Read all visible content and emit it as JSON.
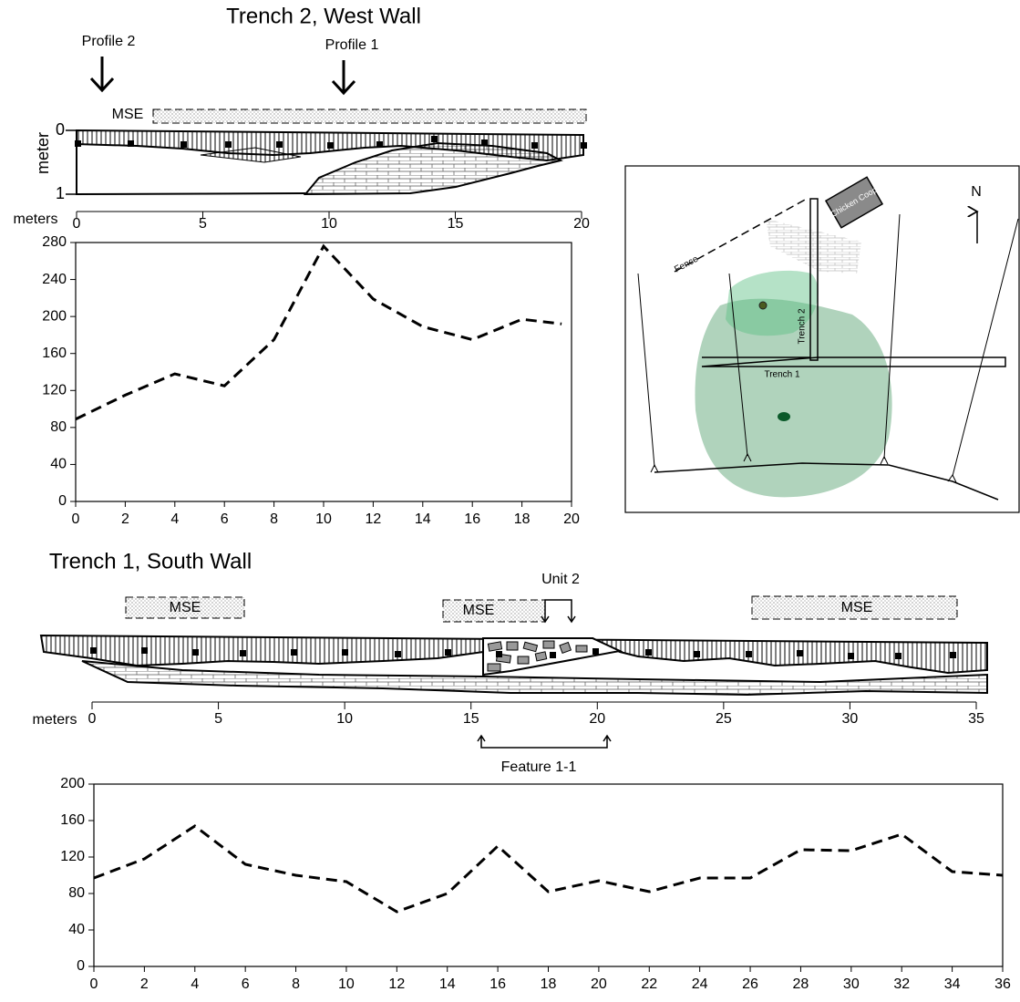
{
  "profile_top": {
    "title": "Trench 2, West Wall",
    "markers": [
      "Profile 2",
      "Profile 1"
    ],
    "mse": "MSE",
    "depth_ticks": [
      0,
      1
    ],
    "depth_label": "meter",
    "scale_label": "meters",
    "scale_ticks": [
      0,
      5,
      10,
      15,
      20
    ]
  },
  "chart_data": [
    {
      "type": "line",
      "x": [
        0,
        2,
        4,
        6,
        8,
        10,
        12,
        14,
        16,
        18,
        19.6
      ],
      "values": [
        89,
        115,
        138,
        125,
        175,
        276,
        219,
        189,
        175,
        197,
        192
      ],
      "color": "#000000",
      "xlim": [
        0,
        20
      ],
      "ylim": [
        0,
        280
      ],
      "xticks": [
        0,
        2,
        4,
        6,
        8,
        10,
        12,
        14,
        16,
        18,
        20
      ],
      "yticks": [
        0,
        40,
        80,
        120,
        160,
        200,
        240,
        280
      ],
      "grid": false
    },
    {
      "type": "line",
      "x": [
        0,
        2,
        4,
        6,
        8,
        10,
        12,
        14,
        16,
        18,
        20,
        22,
        24,
        26,
        28,
        30,
        32,
        34,
        36
      ],
      "values": [
        97,
        118,
        154,
        112,
        100,
        93,
        60,
        80,
        132,
        82,
        94,
        82,
        97,
        97,
        128,
        127,
        145,
        104,
        100
      ],
      "color": "#000000",
      "xlim": [
        0,
        36
      ],
      "ylim": [
        0,
        200
      ],
      "xticks": [
        0,
        2,
        4,
        6,
        8,
        10,
        12,
        14,
        16,
        18,
        20,
        22,
        24,
        26,
        28,
        30,
        32,
        34,
        36
      ],
      "yticks": [
        0,
        40,
        80,
        120,
        160,
        200
      ],
      "grid": false
    }
  ],
  "profile_bottom": {
    "title": "Trench 1, South Wall",
    "mse": [
      "MSE",
      "MSE",
      "MSE"
    ],
    "unit": "Unit 2",
    "scale_label": "meters",
    "scale_ticks": [
      0,
      5,
      10,
      15,
      20,
      25,
      30,
      35
    ],
    "feature": "Feature 1-1"
  },
  "map": {
    "coop": "Chicken Coop",
    "fence": "Fence",
    "north": "N",
    "trenches": [
      "Trench 2",
      "Trench 1"
    ]
  }
}
